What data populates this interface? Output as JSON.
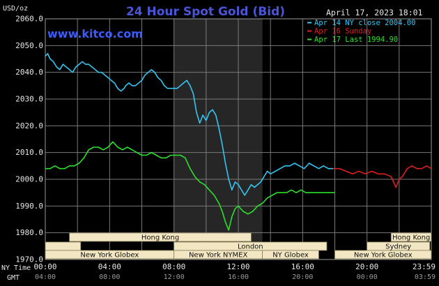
{
  "header": {
    "title": "24 Hour Spot Gold (Bid)",
    "datetime": "April 17, 2023 18:01",
    "unit": "USD/oz",
    "watermark": "www.kitco.com"
  },
  "colors": {
    "background": "#000000",
    "grid": "#7a7a7a",
    "title": "#4a56d8",
    "watermark": "#3b5bff",
    "blue": "#33c7f2",
    "red": "#e01f1f",
    "green": "#2be02b",
    "nymex_band": "#262626",
    "label_box": "#f2e7c2",
    "axis_text": "#e8e8e8",
    "session_text": "#111111"
  },
  "legend": [
    {
      "key": "blue",
      "label": "Apr 14 NY close 2004.00"
    },
    {
      "key": "red",
      "label": "Apr 16 Sunday"
    },
    {
      "key": "green",
      "label": "Apr 17 Last 1994.90"
    }
  ],
  "axes": {
    "y_ticks": [
      "2060.0",
      "2050.0",
      "2040.0",
      "2030.0",
      "2020.0",
      "2010.0",
      "2000.0",
      "1990.0",
      "1980.0",
      "1970.0"
    ],
    "ny_label": "NY Time",
    "gmt_label": "GMT",
    "ny_ticks": [
      "00:00",
      "04:00",
      "08:00",
      "12:00",
      "16:00",
      "20:00",
      "23:59"
    ],
    "gmt_ticks": [
      "04:00",
      "08:00",
      "12:00",
      "16:00",
      "20:00",
      "00:00",
      "03:59"
    ]
  },
  "sessions": {
    "row1": [
      {
        "name": "Hong Kong",
        "start": 1.5,
        "end": 12.8
      },
      {
        "name": "Hong Kong",
        "start": 21.5,
        "end": 25.0
      }
    ],
    "row2": [
      {
        "name": "",
        "start": 0.0,
        "end": 2.2
      },
      {
        "name": "London",
        "start": 8.0,
        "end": 17.5
      },
      {
        "name": "Sydney",
        "start": 20.0,
        "end": 23.9
      }
    ],
    "row3": [
      {
        "name": "New York Globex",
        "start": 0.0,
        "end": 8.0
      },
      {
        "name": "New York NYMEX",
        "start": 8.0,
        "end": 13.5
      },
      {
        "name": "NY Globex",
        "start": 13.5,
        "end": 17.0
      },
      {
        "name": "New York Globex",
        "start": 18.0,
        "end": 24.0
      }
    ]
  },
  "chart_data": {
    "type": "line",
    "title": "24 Hour Spot Gold (Bid)",
    "ylabel": "USD/oz",
    "xlabel": "NY Time",
    "xlim": [
      0,
      24
    ],
    "ylim": [
      1970,
      2060
    ],
    "grid": true,
    "legend_position": "top-right",
    "nymex_session": [
      8.0,
      13.5
    ],
    "series": [
      {
        "name": "Apr 14 NY close 2004.00",
        "color_key": "blue",
        "x": [
          0.0,
          0.15,
          0.3,
          0.5,
          0.7,
          0.9,
          1.1,
          1.3,
          1.5,
          1.7,
          1.9,
          2.1,
          2.3,
          2.5,
          2.7,
          2.9,
          3.1,
          3.3,
          3.5,
          3.7,
          3.9,
          4.1,
          4.3,
          4.5,
          4.7,
          4.9,
          5.0,
          5.2,
          5.4,
          5.6,
          5.8,
          6.0,
          6.2,
          6.4,
          6.6,
          6.8,
          7.0,
          7.2,
          7.4,
          7.6,
          7.8,
          8.0,
          8.2,
          8.4,
          8.6,
          8.8,
          9.0,
          9.2,
          9.4,
          9.6,
          9.8,
          10.0,
          10.2,
          10.4,
          10.6,
          10.8,
          11.0,
          11.2,
          11.4,
          11.6,
          11.8,
          12.0,
          12.2,
          12.4,
          12.6,
          12.8,
          13.0,
          13.2,
          13.4,
          13.6,
          13.8,
          14.0,
          14.3,
          14.6,
          14.9,
          15.2,
          15.5,
          15.8,
          16.1,
          16.4,
          16.7,
          17.0,
          17.3,
          17.6,
          17.9
        ],
        "y": [
          2046,
          2047,
          2045,
          2044,
          2042,
          2041,
          2043,
          2042,
          2041,
          2040,
          2042,
          2043,
          2044,
          2043,
          2043,
          2042,
          2041,
          2040,
          2040,
          2039,
          2038,
          2037,
          2036,
          2034,
          2033,
          2034,
          2035,
          2036,
          2035,
          2035,
          2036,
          2037,
          2039,
          2040,
          2041,
          2040,
          2038,
          2037,
          2035,
          2034,
          2034,
          2034,
          2034,
          2035,
          2036,
          2037,
          2035,
          2032,
          2025,
          2021,
          2024,
          2022,
          2025,
          2026,
          2024,
          2019,
          2013,
          2006,
          2000,
          1996,
          1999,
          1998,
          1996,
          1994,
          1996,
          1998,
          1997,
          1998,
          1999,
          2001,
          2003,
          2002,
          2003,
          2004,
          2005,
          2005,
          2006,
          2005,
          2004,
          2006,
          2005,
          2004,
          2005,
          2004,
          2004
        ]
      },
      {
        "name": "Apr 16 Sunday",
        "color_key": "red",
        "x": [
          17.9,
          18.3,
          18.7,
          19.1,
          19.5,
          19.9,
          20.3,
          20.7,
          21.1,
          21.5,
          21.8,
          22.0,
          22.2,
          22.5,
          22.8,
          23.1,
          23.4,
          23.7,
          23.99
        ],
        "y": [
          2004,
          2004,
          2003,
          2002,
          2003,
          2002,
          2003,
          2002,
          2002,
          2001,
          1997,
          2000,
          2001,
          2004,
          2005,
          2004,
          2004,
          2005,
          2004
        ]
      },
      {
        "name": "Apr 17 Last 1994.90",
        "color_key": "green",
        "x": [
          0.0,
          0.3,
          0.6,
          0.9,
          1.2,
          1.5,
          1.8,
          2.1,
          2.4,
          2.7,
          3.0,
          3.3,
          3.6,
          3.9,
          4.2,
          4.5,
          4.8,
          5.1,
          5.4,
          5.7,
          6.0,
          6.3,
          6.6,
          6.9,
          7.2,
          7.5,
          7.8,
          8.1,
          8.4,
          8.7,
          9.0,
          9.3,
          9.6,
          9.9,
          10.2,
          10.5,
          10.8,
          11.0,
          11.2,
          11.4,
          11.6,
          11.8,
          12.0,
          12.3,
          12.6,
          12.9,
          13.2,
          13.5,
          13.8,
          14.1,
          14.4,
          14.7,
          15.0,
          15.3,
          15.6,
          15.9,
          16.2,
          16.5,
          16.8,
          17.1,
          17.4,
          17.7,
          18.0
        ],
        "y": [
          2004,
          2004,
          2005,
          2004,
          2004,
          2005,
          2005,
          2006,
          2008,
          2011,
          2012,
          2012,
          2011,
          2012,
          2014,
          2012,
          2011,
          2012,
          2011,
          2010,
          2009,
          2009,
          2010,
          2009,
          2008,
          2008,
          2009,
          2009,
          2009,
          2008,
          2004,
          2001,
          1999,
          1998,
          1996,
          1994,
          1991,
          1988,
          1984,
          1981,
          1986,
          1989,
          1990,
          1988,
          1987,
          1988,
          1990,
          1991,
          1993,
          1994,
          1995,
          1995,
          1995,
          1996,
          1995,
          1996,
          1995,
          1995,
          1995,
          1995,
          1995,
          1995,
          1995
        ]
      }
    ]
  }
}
